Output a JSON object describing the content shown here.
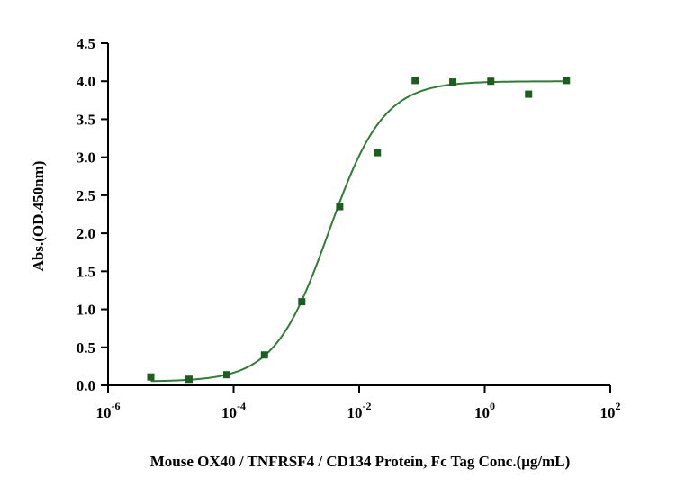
{
  "chart_data": {
    "type": "scatter",
    "title": "",
    "xlabel": "Mouse OX40 / TNFRSF4 / CD134 Protein, Fc Tag Conc.(μg/mL)",
    "ylabel": "Abs.(OD.450nm)",
    "x_scale": "log",
    "xlim": [
      1e-06,
      100
    ],
    "ylim": [
      0,
      4.5
    ],
    "x_ticks": [
      {
        "base": "10",
        "exp": "-6"
      },
      {
        "base": "10",
        "exp": "-4"
      },
      {
        "base": "10",
        "exp": "-2"
      },
      {
        "base": "10",
        "exp": "0"
      },
      {
        "base": "10",
        "exp": "2"
      }
    ],
    "y_ticks": [
      "0.0",
      "0.5",
      "1.0",
      "1.5",
      "2.0",
      "2.5",
      "3.0",
      "3.5",
      "4.0",
      "4.5"
    ],
    "grid": false,
    "legend": "none",
    "colors": {
      "series": "#2e7d32",
      "marker": "#1b5e20",
      "axis": "#000000"
    },
    "series": [
      {
        "points": [
          {
            "x": 4.8e-06,
            "y": 0.11
          },
          {
            "x": 1.95e-05,
            "y": 0.08
          },
          {
            "x": 7.8e-05,
            "y": 0.14
          },
          {
            "x": 0.00031,
            "y": 0.4
          },
          {
            "x": 0.00122,
            "y": 1.1
          },
          {
            "x": 0.0049,
            "y": 2.35
          },
          {
            "x": 0.0195,
            "y": 3.06
          },
          {
            "x": 0.078,
            "y": 4.01
          },
          {
            "x": 0.31,
            "y": 3.99
          },
          {
            "x": 1.25,
            "y": 4.0
          },
          {
            "x": 5.0,
            "y": 3.83
          },
          {
            "x": 20.0,
            "y": 4.01
          }
        ],
        "fit": {
          "model": "4PL",
          "bottom": 0.05,
          "top": 4.0,
          "ec50": 0.0033,
          "hill": 1.0
        }
      }
    ]
  }
}
